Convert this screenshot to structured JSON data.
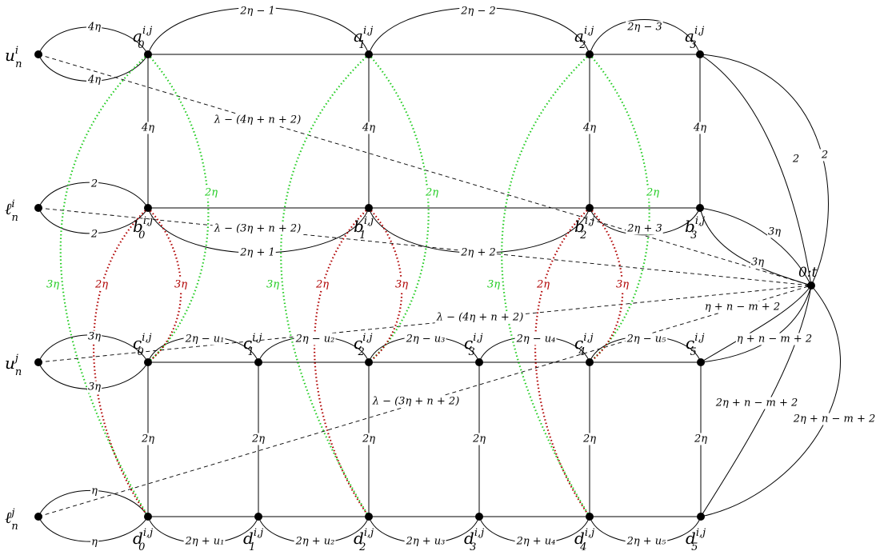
{
  "colors": {
    "black": "#000000",
    "green": "#22cc22",
    "red": "#b00000"
  },
  "nodes": [
    {
      "id": "uni",
      "label": "u^i_n"
    },
    {
      "id": "lni",
      "label": "ℓ^i_n"
    },
    {
      "id": "unj",
      "label": "u^j_n"
    },
    {
      "id": "lnj",
      "label": "ℓ^j_n"
    },
    {
      "id": "a0",
      "label": "a^{i,j}_0"
    },
    {
      "id": "a1",
      "label": "a^{i,j}_1"
    },
    {
      "id": "a2",
      "label": "a^{i,j}_2"
    },
    {
      "id": "a3",
      "label": "a^{i,j}_3"
    },
    {
      "id": "b0",
      "label": "b^{i,j}_0"
    },
    {
      "id": "b1",
      "label": "b^{i,j}_1"
    },
    {
      "id": "b2",
      "label": "b^{i,j}_2"
    },
    {
      "id": "b3",
      "label": "b^{i,j}_3"
    },
    {
      "id": "c0",
      "label": "c^{i,j}_0"
    },
    {
      "id": "c1",
      "label": "c^{i,j}_1"
    },
    {
      "id": "c2",
      "label": "c^{i,j}_2"
    },
    {
      "id": "c3",
      "label": "c^{i,j}_3"
    },
    {
      "id": "c4",
      "label": "c^{i,j}_4"
    },
    {
      "id": "c5",
      "label": "c^{i,j}_5"
    },
    {
      "id": "d0",
      "label": "d^{i,j}_0"
    },
    {
      "id": "d1",
      "label": "d^{i,j}_1"
    },
    {
      "id": "d2",
      "label": "d^{i,j}_2"
    },
    {
      "id": "d3",
      "label": "d^{i,j}_3"
    },
    {
      "id": "d4",
      "label": "d^{i,j}_4"
    },
    {
      "id": "d5",
      "label": "d^{i,j}_5"
    },
    {
      "id": "t",
      "label": "0:t"
    }
  ],
  "edge_labels": {
    "uni_a0_top": "4η",
    "uni_a0_bot": "4η",
    "lni_b0_top": "2",
    "lni_b0_bot": "2",
    "unj_c0_top": "3η",
    "unj_c0_bot": "3η",
    "lnj_d0_top": "η",
    "lnj_d0_bot": "η",
    "a0_a1": "2η − 1",
    "a1_a2": "2η − 2",
    "a2_a3": "2η − 3",
    "b0_b1": "2η + 1",
    "b1_b2": "2η + 2",
    "b2_b3": "2η + 3",
    "c0_c1": "2η − u₁",
    "c1_c2": "2η − u₂",
    "c2_c3": "2η − u₃",
    "c3_c4": "2η − u₄",
    "c4_c5": "2η − u₅",
    "d0_d1": "2η + u₁",
    "d1_d2": "2η + u₂",
    "d2_d3": "2η + u₃",
    "d3_d4": "2η + u₄",
    "d4_d5": "2η + u₅",
    "ab_vert": "4η",
    "cd_vert": "2η",
    "green_inner": "2η",
    "green_outer": "3η",
    "red_left": "2η",
    "red_right": "3η",
    "a3_t_1": "2",
    "a3_t_2": "2",
    "b3_t_1": "3η",
    "b3_t_2": "3η",
    "c5_t_1": "η + n − m + 2",
    "c5_t_2": "η + n − m + 2",
    "d5_t_1": "2η + n − m + 2",
    "d5_t_2": "2η + n − m + 2",
    "uni_t": "λ − (4η + n + 2)",
    "lni_t": "λ − (3η + n + 2)",
    "unj_t": "λ − (4η + n + 2)",
    "lnj_t": "λ − (3η + n + 2)"
  }
}
